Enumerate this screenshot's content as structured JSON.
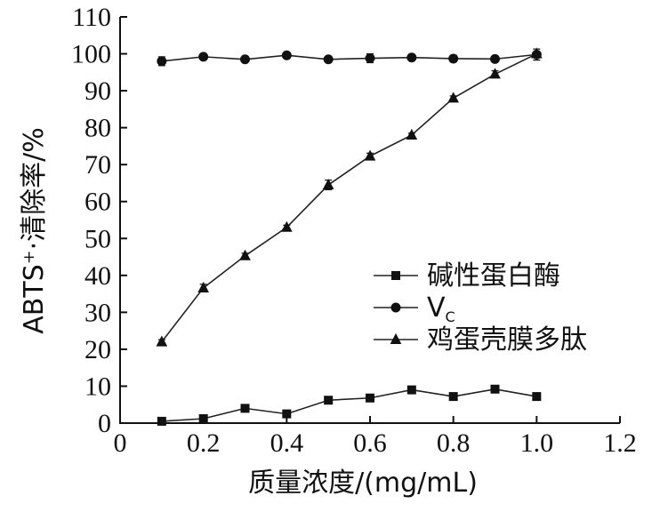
{
  "chart_data": {
    "type": "line",
    "title": "",
    "xlabel": "质量浓度/(mg/mL)",
    "ylabel": "ABTS⁺·清除率/%",
    "xlim": [
      0,
      1.2
    ],
    "ylim": [
      0,
      110
    ],
    "xticks": [
      "0",
      "0.2",
      "0.4",
      "0.6",
      "0.8",
      "1.0",
      "1.2"
    ],
    "yticks": [
      "0",
      "10",
      "20",
      "30",
      "40",
      "50",
      "60",
      "70",
      "80",
      "90",
      "100",
      "110"
    ],
    "grid": false,
    "legend_position": "center-right",
    "x": [
      0.1,
      0.2,
      0.3,
      0.4,
      0.5,
      0.6,
      0.7,
      0.8,
      0.9,
      1.0
    ],
    "series": [
      {
        "name": "碱性蛋白酶",
        "marker": "square",
        "values": [
          0.5,
          1.2,
          4.0,
          2.5,
          6.2,
          6.8,
          9.0,
          7.2,
          9.2,
          7.2
        ],
        "errors": [
          0.3,
          0.3,
          0.4,
          0.3,
          0.4,
          0.4,
          0.4,
          0.4,
          0.4,
          0.4
        ]
      },
      {
        "name": "V",
        "name_subscript": "C",
        "marker": "circle",
        "values": [
          98.0,
          99.2,
          98.5,
          99.6,
          98.5,
          98.8,
          99.0,
          98.7,
          98.6,
          99.8
        ],
        "errors": [
          1.2,
          0.6,
          0.8,
          0.5,
          0.5,
          1.2,
          0.5,
          0.9,
          0.5,
          1.5
        ]
      },
      {
        "name": "鸡蛋壳膜多肽",
        "marker": "triangle",
        "values": [
          22.0,
          36.6,
          45.3,
          53.0,
          64.5,
          72.3,
          78.0,
          88.0,
          94.5,
          100.0
        ],
        "errors": [
          0.6,
          1.0,
          0.7,
          0.6,
          1.3,
          0.8,
          0.5,
          0.6,
          0.9,
          0.5
        ]
      }
    ]
  }
}
